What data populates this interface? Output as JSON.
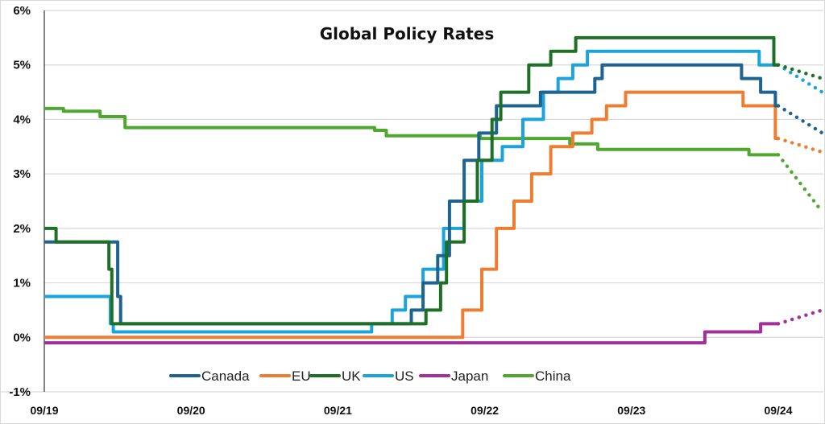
{
  "chart_data": {
    "type": "line",
    "step": true,
    "title": "Global Policy Rates",
    "xlabel": "",
    "ylabel": "",
    "x_unit": "years since 09/19",
    "xlim": [
      0,
      5.3
    ],
    "ylim": [
      -1,
      6
    ],
    "y_ticks": [
      -1,
      0,
      1,
      2,
      3,
      4,
      5,
      6
    ],
    "y_tick_labels": [
      "-1%",
      "0%",
      "1%",
      "2%",
      "3%",
      "4%",
      "5%",
      "6%"
    ],
    "x_ticks": [
      0,
      1,
      2,
      3,
      4,
      5
    ],
    "x_tick_labels": [
      "09/19",
      "09/20",
      "09/21",
      "09/22",
      "09/23",
      "09/24"
    ],
    "grid": true,
    "legend_position": "bottom",
    "series": [
      {
        "name": "Canada",
        "color": "#1f6390",
        "points": [
          [
            0,
            1.75
          ],
          [
            0.5,
            1.75
          ],
          [
            0.5,
            0.75
          ],
          [
            0.52,
            0.75
          ],
          [
            0.52,
            0.25
          ],
          [
            2.5,
            0.25
          ],
          [
            2.5,
            0.5
          ],
          [
            2.58,
            0.5
          ],
          [
            2.58,
            1.0
          ],
          [
            2.68,
            1.0
          ],
          [
            2.68,
            1.5
          ],
          [
            2.76,
            1.5
          ],
          [
            2.76,
            2.5
          ],
          [
            2.86,
            2.5
          ],
          [
            2.86,
            3.25
          ],
          [
            2.96,
            3.25
          ],
          [
            2.96,
            3.75
          ],
          [
            3.08,
            3.75
          ],
          [
            3.08,
            4.25
          ],
          [
            3.38,
            4.25
          ],
          [
            3.38,
            4.5
          ],
          [
            3.75,
            4.5
          ],
          [
            3.75,
            4.75
          ],
          [
            3.8,
            4.75
          ],
          [
            3.8,
            5.0
          ],
          [
            4.75,
            5.0
          ],
          [
            4.75,
            4.75
          ],
          [
            4.88,
            4.75
          ],
          [
            4.88,
            4.5
          ],
          [
            4.98,
            4.5
          ],
          [
            4.98,
            4.25
          ],
          [
            5.0,
            4.25
          ]
        ],
        "projection": [
          [
            5.0,
            4.25
          ],
          [
            5.3,
            3.75
          ]
        ]
      },
      {
        "name": "EU",
        "color": "#ed7d31",
        "points": [
          [
            0,
            0
          ],
          [
            2.85,
            0
          ],
          [
            2.85,
            0.5
          ],
          [
            2.98,
            0.5
          ],
          [
            2.98,
            1.25
          ],
          [
            3.08,
            1.25
          ],
          [
            3.08,
            2.0
          ],
          [
            3.2,
            2.0
          ],
          [
            3.2,
            2.5
          ],
          [
            3.32,
            2.5
          ],
          [
            3.32,
            3.0
          ],
          [
            3.45,
            3.0
          ],
          [
            3.45,
            3.5
          ],
          [
            3.6,
            3.5
          ],
          [
            3.6,
            3.75
          ],
          [
            3.73,
            3.75
          ],
          [
            3.73,
            4.0
          ],
          [
            3.83,
            4.0
          ],
          [
            3.83,
            4.25
          ],
          [
            3.96,
            4.25
          ],
          [
            3.96,
            4.5
          ],
          [
            4.76,
            4.5
          ],
          [
            4.76,
            4.25
          ],
          [
            4.98,
            4.25
          ],
          [
            4.98,
            3.65
          ],
          [
            5.0,
            3.65
          ]
        ],
        "projection": [
          [
            5.0,
            3.65
          ],
          [
            5.3,
            3.4
          ]
        ]
      },
      {
        "name": "UK",
        "color": "#1d7025",
        "points": [
          [
            0,
            2.0
          ],
          [
            0.08,
            2.0
          ],
          [
            0.08,
            1.75
          ],
          [
            0.44,
            1.75
          ],
          [
            0.44,
            1.25
          ],
          [
            0.46,
            1.25
          ],
          [
            0.46,
            0.25
          ],
          [
            2.6,
            0.25
          ],
          [
            2.6,
            0.5
          ],
          [
            2.7,
            0.5
          ],
          [
            2.7,
            1.0
          ],
          [
            2.74,
            1.0
          ],
          [
            2.74,
            1.75
          ],
          [
            2.86,
            1.75
          ],
          [
            2.86,
            2.5
          ],
          [
            2.95,
            2.5
          ],
          [
            2.95,
            3.25
          ],
          [
            3.05,
            3.25
          ],
          [
            3.05,
            4.0
          ],
          [
            3.11,
            4.0
          ],
          [
            3.11,
            4.5
          ],
          [
            3.3,
            4.5
          ],
          [
            3.3,
            5.0
          ],
          [
            3.45,
            5.0
          ],
          [
            3.45,
            5.25
          ],
          [
            3.62,
            5.25
          ],
          [
            3.62,
            5.5
          ],
          [
            4.97,
            5.5
          ],
          [
            4.97,
            5.0
          ],
          [
            5.0,
            5.0
          ]
        ],
        "projection": [
          [
            5.0,
            5.0
          ],
          [
            5.3,
            4.75
          ]
        ]
      },
      {
        "name": "US",
        "color": "#1ba4dc",
        "points": [
          [
            0,
            0.75
          ],
          [
            0.45,
            0.75
          ],
          [
            0.45,
            0.25
          ],
          [
            0.47,
            0.25
          ],
          [
            0.47,
            0.1
          ],
          [
            2.23,
            0.1
          ],
          [
            2.23,
            0.25
          ],
          [
            2.37,
            0.25
          ],
          [
            2.37,
            0.5
          ],
          [
            2.46,
            0.5
          ],
          [
            2.46,
            0.75
          ],
          [
            2.58,
            0.75
          ],
          [
            2.58,
            1.25
          ],
          [
            2.72,
            1.25
          ],
          [
            2.72,
            2.0
          ],
          [
            2.86,
            2.0
          ],
          [
            2.86,
            2.5
          ],
          [
            2.98,
            2.5
          ],
          [
            2.98,
            3.25
          ],
          [
            3.12,
            3.25
          ],
          [
            3.12,
            3.5
          ],
          [
            3.26,
            3.5
          ],
          [
            3.26,
            4.0
          ],
          [
            3.4,
            4.0
          ],
          [
            3.4,
            4.5
          ],
          [
            3.5,
            4.5
          ],
          [
            3.5,
            4.75
          ],
          [
            3.6,
            4.75
          ],
          [
            3.6,
            5.0
          ],
          [
            3.7,
            5.0
          ],
          [
            3.7,
            5.25
          ],
          [
            4.87,
            5.25
          ],
          [
            4.87,
            5.0
          ],
          [
            5.0,
            5.0
          ]
        ],
        "projection": [
          [
            5.0,
            5.0
          ],
          [
            5.3,
            4.5
          ]
        ]
      },
      {
        "name": "Japan",
        "color": "#a0309a",
        "points": [
          [
            0,
            -0.1
          ],
          [
            4.5,
            -0.1
          ],
          [
            4.5,
            0.1
          ],
          [
            4.88,
            0.1
          ],
          [
            4.88,
            0.25
          ],
          [
            5.0,
            0.25
          ]
        ],
        "projection": [
          [
            5.0,
            0.25
          ],
          [
            5.3,
            0.5
          ]
        ]
      },
      {
        "name": "China",
        "color": "#4ea72e",
        "points": [
          [
            0,
            4.2
          ],
          [
            0.13,
            4.2
          ],
          [
            0.13,
            4.15
          ],
          [
            0.38,
            4.15
          ],
          [
            0.38,
            4.05
          ],
          [
            0.55,
            4.05
          ],
          [
            0.55,
            3.85
          ],
          [
            2.25,
            3.85
          ],
          [
            2.25,
            3.8
          ],
          [
            2.33,
            3.8
          ],
          [
            2.33,
            3.7
          ],
          [
            2.97,
            3.7
          ],
          [
            2.97,
            3.65
          ],
          [
            3.58,
            3.65
          ],
          [
            3.58,
            3.55
          ],
          [
            3.77,
            3.55
          ],
          [
            3.77,
            3.45
          ],
          [
            4.8,
            3.45
          ],
          [
            4.8,
            3.35
          ],
          [
            5.0,
            3.35
          ]
        ],
        "projection": [
          [
            5.0,
            3.35
          ],
          [
            5.3,
            2.3
          ]
        ]
      }
    ]
  }
}
